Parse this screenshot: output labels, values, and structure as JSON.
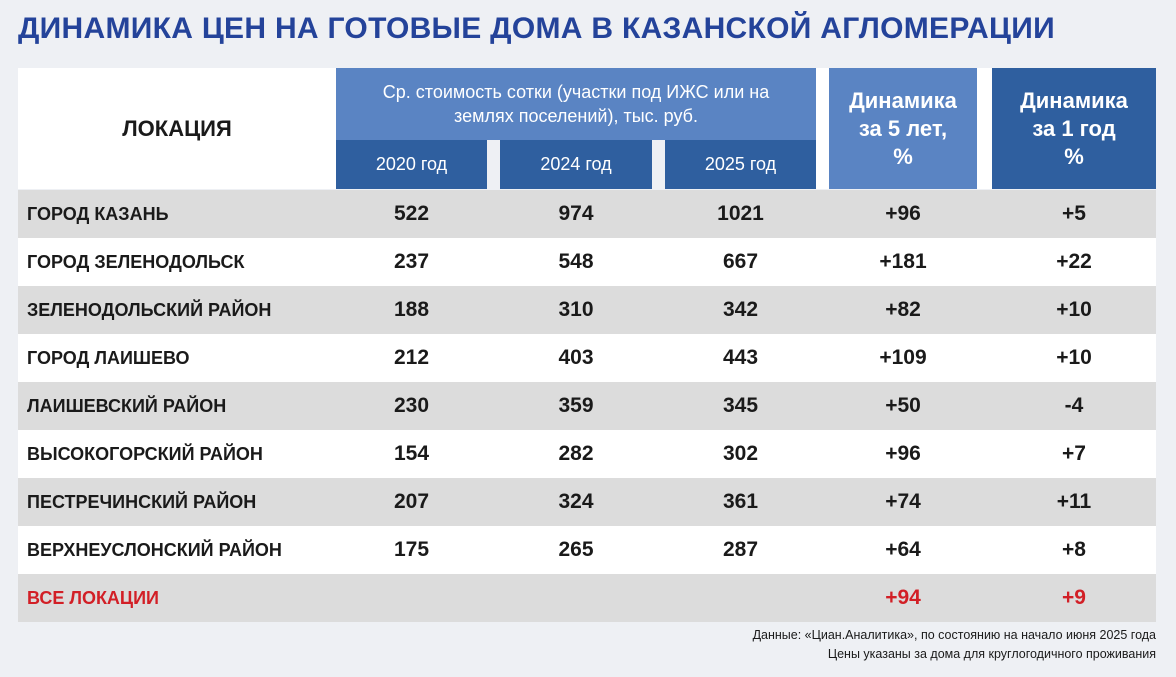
{
  "title": "ДИНАМИКА ЦЕН НА ГОТОВЫЕ ДОМА В КАЗАНСКОЙ АГЛОМЕРАЦИИ",
  "colors": {
    "title": "#24439a",
    "header_light": "#5a84c3",
    "header_dark": "#2f5f9f",
    "row_shade": "#dcdcdc",
    "total_text": "#d21f26"
  },
  "headers": {
    "location": "ЛОКАЦИЯ",
    "price_group": "Ср. стоимость сотки (участки под ИЖС или на землях поселений), тыс. руб.",
    "years": [
      "2020 год",
      "2024 год",
      "2025 год"
    ],
    "dyn5": [
      "Динамика",
      "за 5 лет,",
      "%"
    ],
    "dyn1": [
      "Динамика",
      "за 1 год",
      "%"
    ]
  },
  "chart_data": {
    "type": "table",
    "title": "ДИНАМИКА ЦЕН НА ГОТОВЫЕ ДОМА В КАЗАНСКОЙ АГЛОМЕРАЦИИ",
    "columns": [
      "ЛОКАЦИЯ",
      "2020 год",
      "2024 год",
      "2025 год",
      "Динамика за 5 лет, %",
      "Динамика за 1 год %"
    ],
    "rows": [
      [
        "ГОРОД КАЗАНЬ",
        "522",
        "974",
        "1021",
        "+96",
        "+5"
      ],
      [
        "ГОРОД ЗЕЛЕНОДОЛЬСК",
        "237",
        "548",
        "667",
        "+181",
        "+22"
      ],
      [
        "ЗЕЛЕНОДОЛЬСКИЙ РАЙОН",
        "188",
        "310",
        "342",
        "+82",
        "+10"
      ],
      [
        "ГОРОД ЛАИШЕВО",
        "212",
        "403",
        "443",
        "+109",
        "+10"
      ],
      [
        "ЛАИШЕВСКИЙ РАЙОН",
        "230",
        "359",
        "345",
        "+50",
        "-4"
      ],
      [
        "ВЫСОКОГОРСКИЙ РАЙОН",
        "154",
        "282",
        "302",
        "+96",
        "+7"
      ],
      [
        "ПЕСТРЕЧИНСКИЙ РАЙОН",
        "207",
        "324",
        "361",
        "+74",
        "+11"
      ],
      [
        "ВЕРХНЕУСЛОНСКИЙ РАЙОН",
        "175",
        "265",
        "287",
        "+64",
        "+8"
      ]
    ],
    "total": [
      "ВСЕ ЛОКАЦИИ",
      "",
      "",
      "",
      "+94",
      "+9"
    ]
  },
  "footnotes": [
    "Данные: «Циан.Аналитика», по состоянию на начало июня 2025 года",
    "Цены указаны за дома для круглогодичного проживания"
  ]
}
